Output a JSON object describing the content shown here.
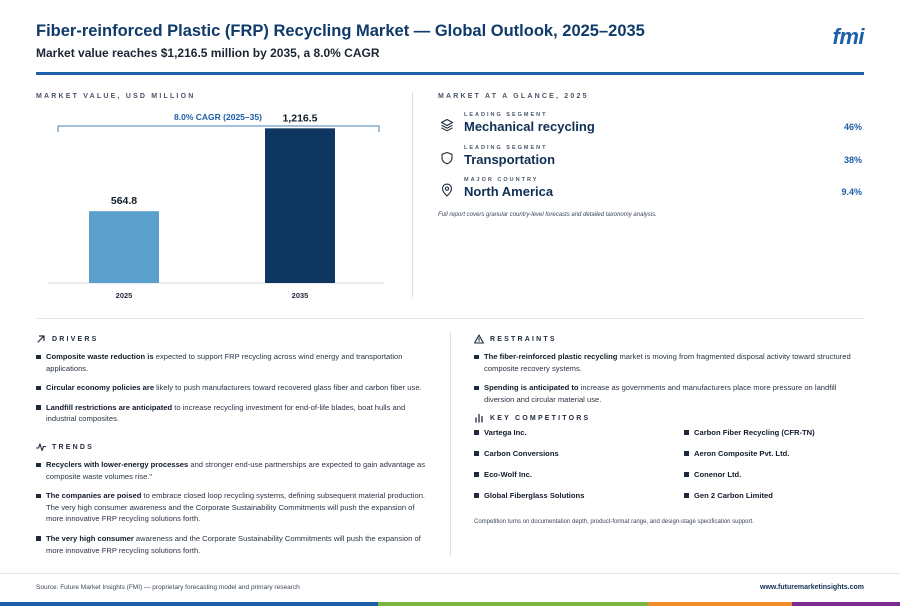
{
  "header": {
    "title": "Fiber-reinforced Plastic (FRP) Recycling Market — Global Outlook, 2025–2035",
    "subtitle": "Market value reaches $1,216.5 million by 2035, a 8.0% CAGR",
    "logo": "fmi"
  },
  "left_panel": {
    "label": "MARKET VALUE, USD MILLION"
  },
  "chart_data": {
    "type": "bar",
    "categories": [
      "2025",
      "2035"
    ],
    "values": [
      564.8,
      1216.5
    ],
    "value_labels": [
      "564.8",
      "1,216.5"
    ],
    "annotation": "8.0% CAGR (2025–35)",
    "ylim": [
      0,
      1400
    ],
    "grid": false,
    "colors": [
      "#5b9fcd",
      "#0f3561"
    ]
  },
  "glance": {
    "label": "MARKET AT A GLANCE, 2025",
    "items": [
      {
        "kicker": "LEADING SEGMENT",
        "value": "Mechanical recycling",
        "pct": "46%",
        "icon": "layers-icon"
      },
      {
        "kicker": "LEADING SEGMENT",
        "value": "Transportation",
        "pct": "38%",
        "icon": "shield-icon"
      },
      {
        "kicker": "MAJOR COUNTRY",
        "value": "North America",
        "pct": "9.4%",
        "icon": "map-pin-icon"
      }
    ],
    "note": "Full report covers granular country-level forecasts and detailed taxonomy analysis."
  },
  "drivers": {
    "label": "DRIVERS",
    "items": [
      {
        "bold": "Composite waste reduction is",
        "text": " expected to support FRP recycling across wind energy and transportation applications."
      },
      {
        "bold": "Circular economy policies are",
        "text": " likely to push manufacturers toward recovered glass fiber and carbon fiber use."
      },
      {
        "bold": "Landfill restrictions are anticipated",
        "text": " to increase recycling investment for end-of-life blades, boat hulls and industrial composites."
      }
    ]
  },
  "trends": {
    "label": "TRENDS",
    "items": [
      {
        "bold": "Recyclers with lower-energy processes",
        "text": " and stronger end-use partnerships are expected to gain advantage as composite waste volumes rise.\""
      },
      {
        "bold": "The companies are poised",
        "text": " to embrace closed loop recycling systems, defining subsequent material production. The very high consumer awareness and the Corporate Sustainability Commitments will push the expansion of more innovative FRP recycling solutions forth."
      },
      {
        "bold": "The very high consumer",
        "text": " awareness and the Corporate Sustainability Commitments will push the expansion of more innovative FRP recycling solutions forth."
      }
    ]
  },
  "restraints": {
    "label": "RESTRAINTS",
    "items": [
      {
        "bold": "The fiber-reinforced plastic recycling",
        "text": " market is moving from fragmented disposal activity toward structured composite recovery systems."
      },
      {
        "bold": "Spending is anticipated to",
        "text": " increase as governments and manufacturers place more pressure on landfill diversion and circular material use."
      }
    ]
  },
  "competitors": {
    "label": "KEY COMPETITORS",
    "items": [
      "Vartega Inc.",
      "Carbon Fiber Recycling (CFR-TN)",
      "Carbon Conversions",
      "Aeron Composite Pvt. Ltd.",
      "Eco-Wolf Inc.",
      "Conenor Ltd.",
      "Global Fiberglass Solutions",
      "Gen 2 Carbon Limited"
    ],
    "note": "Competition turns on documentation depth, product-format range, and design-stage specification support."
  },
  "footer": {
    "source": "Source: Future Market Insights (FMI) — proprietary forecasting model and primary research",
    "url": "www.futuremarketinsights.com",
    "bar_colors": [
      "#1d5fa8",
      "#7cb342",
      "#f08c2a",
      "#7b2d8e"
    ]
  }
}
